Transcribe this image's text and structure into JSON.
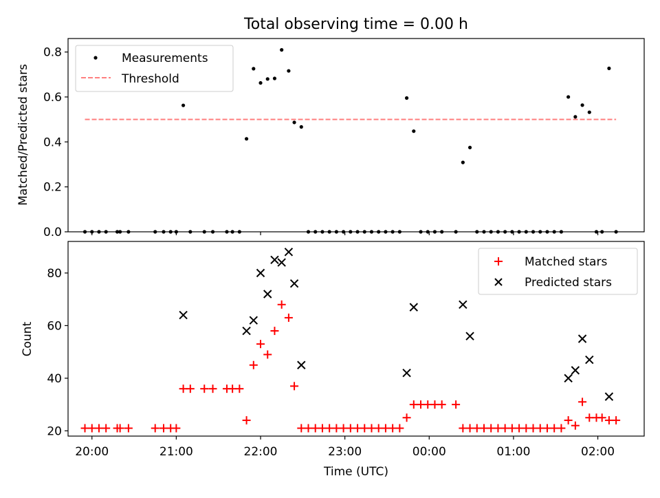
{
  "title": "Total observing time = 0.00 h",
  "chart_data": [
    {
      "type": "scatter",
      "ylabel": "Matched/Predicted stars",
      "xlabel": "",
      "xlim": [
        "19:43",
        "02:33"
      ],
      "ylim": [
        0,
        0.86
      ],
      "yticks": [
        0.0,
        0.2,
        0.4,
        0.6,
        0.8
      ],
      "ytick_labels": [
        "0.0",
        "0.2",
        "0.4",
        "0.6",
        "0.8"
      ],
      "grid": false,
      "legend_position": "upper left",
      "series": [
        {
          "name": "Measurements",
          "marker": "dot",
          "color": "#000000",
          "points": [
            [
              "19:55",
              0.0
            ],
            [
              "20:00",
              0.0
            ],
            [
              "20:05",
              0.0
            ],
            [
              "20:10",
              0.0
            ],
            [
              "20:18",
              0.0
            ],
            [
              "20:20",
              0.0
            ],
            [
              "20:26",
              0.0
            ],
            [
              "20:45",
              0.0
            ],
            [
              "20:51",
              0.0
            ],
            [
              "20:56",
              0.0
            ],
            [
              "21:00",
              0.0
            ],
            [
              "21:05",
              0.5626
            ],
            [
              "21:10",
              0.0
            ],
            [
              "21:20",
              0.0
            ],
            [
              "21:26",
              0.0
            ],
            [
              "21:36",
              0.0
            ],
            [
              "21:40",
              0.0
            ],
            [
              "21:45",
              0.0
            ],
            [
              "21:50",
              0.4138
            ],
            [
              "21:55",
              0.7258
            ],
            [
              "22:00",
              0.6625
            ],
            [
              "22:05",
              0.68
            ],
            [
              "22:10",
              0.6824
            ],
            [
              "22:15",
              0.8095
            ],
            [
              "22:20",
              0.7159
            ],
            [
              "22:24",
              0.4867
            ],
            [
              "22:29",
              0.4667
            ],
            [
              "22:34",
              0.0
            ],
            [
              "22:39",
              0.0
            ],
            [
              "22:44",
              0.0
            ],
            [
              "22:49",
              0.0
            ],
            [
              "22:54",
              0.0
            ],
            [
              "22:59",
              0.0
            ],
            [
              "23:04",
              0.0
            ],
            [
              "23:09",
              0.0
            ],
            [
              "23:14",
              0.0
            ],
            [
              "23:19",
              0.0
            ],
            [
              "23:24",
              0.0
            ],
            [
              "23:29",
              0.0
            ],
            [
              "23:34",
              0.0
            ],
            [
              "23:39",
              0.0
            ],
            [
              "23:44",
              0.5952
            ],
            [
              "23:49",
              0.4478
            ],
            [
              "23:54",
              0.0
            ],
            [
              "23:59",
              0.0
            ],
            [
              "00:04",
              0.0
            ],
            [
              "00:09",
              0.0
            ],
            [
              "00:19",
              0.0
            ],
            [
              "00:24",
              0.3088
            ],
            [
              "00:29",
              0.375
            ],
            [
              "00:34",
              0.0
            ],
            [
              "00:39",
              0.0
            ],
            [
              "00:44",
              0.0
            ],
            [
              "00:49",
              0.0
            ],
            [
              "00:54",
              0.0
            ],
            [
              "00:59",
              0.0
            ],
            [
              "01:04",
              0.0
            ],
            [
              "01:09",
              0.0
            ],
            [
              "01:14",
              0.0
            ],
            [
              "01:19",
              0.0
            ],
            [
              "01:24",
              0.0
            ],
            [
              "01:29",
              0.0
            ],
            [
              "01:34",
              0.0
            ],
            [
              "01:39",
              0.6
            ],
            [
              "01:44",
              0.5116
            ],
            [
              "01:49",
              0.5636
            ],
            [
              "01:54",
              0.5319
            ],
            [
              "01:59",
              0.0
            ],
            [
              "02:03",
              0.0
            ],
            [
              "02:08",
              0.7273
            ],
            [
              "02:13",
              0.0
            ]
          ]
        },
        {
          "name": "Threshold",
          "marker": "dashed-line",
          "color": "#ff7f7f",
          "points": [
            [
              "19:55",
              0.5
            ],
            [
              "02:13",
              0.5
            ]
          ]
        }
      ]
    },
    {
      "type": "scatter",
      "ylabel": "Count",
      "xlabel": "Time (UTC)",
      "xlim": [
        "19:43",
        "02:33"
      ],
      "ylim": [
        18,
        92
      ],
      "yticks": [
        20,
        40,
        60,
        80
      ],
      "ytick_labels": [
        "20",
        "40",
        "60",
        "80"
      ],
      "xticks": [
        "20:00",
        "21:00",
        "22:00",
        "23:00",
        "00:00",
        "01:00",
        "02:00"
      ],
      "xtick_labels": [
        "20:00",
        "21:00",
        "22:00",
        "23:00",
        "00:00",
        "01:00",
        "02:00"
      ],
      "grid": false,
      "legend_position": "upper right",
      "series": [
        {
          "name": "Matched stars",
          "marker": "plus",
          "color": "#ff0000",
          "points": [
            [
              "19:55",
              21
            ],
            [
              "20:00",
              21
            ],
            [
              "20:05",
              21
            ],
            [
              "20:10",
              21
            ],
            [
              "20:18",
              21
            ],
            [
              "20:20",
              21
            ],
            [
              "20:26",
              21
            ],
            [
              "20:45",
              21
            ],
            [
              "20:51",
              21
            ],
            [
              "20:56",
              21
            ],
            [
              "21:00",
              21
            ],
            [
              "21:05",
              36
            ],
            [
              "21:10",
              36
            ],
            [
              "21:20",
              36
            ],
            [
              "21:26",
              36
            ],
            [
              "21:36",
              36
            ],
            [
              "21:40",
              36
            ],
            [
              "21:45",
              36
            ],
            [
              "21:50",
              24
            ],
            [
              "21:55",
              45
            ],
            [
              "22:00",
              53
            ],
            [
              "22:05",
              49
            ],
            [
              "22:10",
              58
            ],
            [
              "22:15",
              68
            ],
            [
              "22:20",
              63
            ],
            [
              "22:24",
              37
            ],
            [
              "22:29",
              21
            ],
            [
              "22:34",
              21
            ],
            [
              "22:39",
              21
            ],
            [
              "22:44",
              21
            ],
            [
              "22:49",
              21
            ],
            [
              "22:54",
              21
            ],
            [
              "22:59",
              21
            ],
            [
              "23:04",
              21
            ],
            [
              "23:09",
              21
            ],
            [
              "23:14",
              21
            ],
            [
              "23:19",
              21
            ],
            [
              "23:24",
              21
            ],
            [
              "23:29",
              21
            ],
            [
              "23:34",
              21
            ],
            [
              "23:39",
              21
            ],
            [
              "23:44",
              25
            ],
            [
              "23:49",
              30
            ],
            [
              "23:54",
              30
            ],
            [
              "23:59",
              30
            ],
            [
              "00:04",
              30
            ],
            [
              "00:09",
              30
            ],
            [
              "00:19",
              30
            ],
            [
              "00:24",
              21
            ],
            [
              "00:29",
              21
            ],
            [
              "00:34",
              21
            ],
            [
              "00:39",
              21
            ],
            [
              "00:44",
              21
            ],
            [
              "00:49",
              21
            ],
            [
              "00:54",
              21
            ],
            [
              "00:59",
              21
            ],
            [
              "01:04",
              21
            ],
            [
              "01:09",
              21
            ],
            [
              "01:14",
              21
            ],
            [
              "01:19",
              21
            ],
            [
              "01:24",
              21
            ],
            [
              "01:29",
              21
            ],
            [
              "01:34",
              21
            ],
            [
              "01:39",
              24
            ],
            [
              "01:44",
              22
            ],
            [
              "01:49",
              31
            ],
            [
              "01:54",
              25
            ],
            [
              "01:59",
              25
            ],
            [
              "02:03",
              25
            ],
            [
              "02:08",
              24
            ],
            [
              "02:13",
              24
            ]
          ]
        },
        {
          "name": "Predicted stars",
          "marker": "x",
          "color": "#000000",
          "points": [
            [
              "21:05",
              64
            ],
            [
              "21:50",
              58
            ],
            [
              "21:55",
              62
            ],
            [
              "22:00",
              80
            ],
            [
              "22:05",
              72
            ],
            [
              "22:10",
              85
            ],
            [
              "22:15",
              84
            ],
            [
              "22:20",
              88
            ],
            [
              "22:24",
              76
            ],
            [
              "22:29",
              45
            ],
            [
              "23:44",
              42
            ],
            [
              "23:49",
              67
            ],
            [
              "00:24",
              68
            ],
            [
              "00:29",
              56
            ],
            [
              "01:39",
              40
            ],
            [
              "01:44",
              43
            ],
            [
              "01:49",
              55
            ],
            [
              "01:54",
              47
            ],
            [
              "02:08",
              33
            ]
          ]
        }
      ]
    }
  ]
}
